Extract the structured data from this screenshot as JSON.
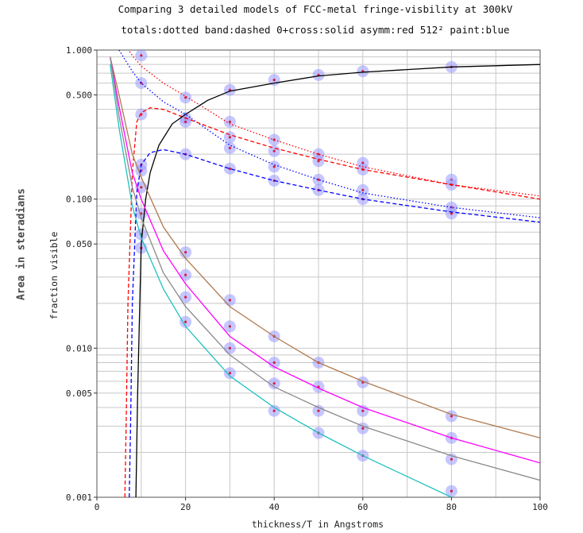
{
  "title_line1": "Comparing 3 detailed models of FCC-metal fringe-visbility at 300kV",
  "title_line2": "totals:dotted band:dashed 0+cross:solid asymm:red 512² paint:blue",
  "side_label": "Area in steradians",
  "colors": {
    "red": "#ff0000",
    "blue": "#0000ff",
    "black": "#000000",
    "brown": "#b07a50",
    "magenta": "#ff00ff",
    "gray": "#8a8a8a",
    "cyan": "#20c0c0",
    "marker": "#9999ff"
  },
  "chart_data": {
    "type": "line",
    "title": "Comparing 3 detailed models of FCC-metal fringe-visbility at 300kV",
    "subtitle": "totals:dotted band:dashed 0+cross:solid asymm:red 512² paint:blue",
    "xlabel": "thickness/T in Angstroms",
    "ylabel": "fraction visible",
    "xlim": [
      0,
      100
    ],
    "ylim": [
      0.001,
      1.0
    ],
    "y_scale": "log",
    "grid": true,
    "x_ticks": [
      0,
      20,
      40,
      60,
      80,
      100
    ],
    "y_tick_labels": [
      {
        "value": 1.0,
        "label": "1.000"
      },
      {
        "value": 0.5,
        "label": "0.500"
      },
      {
        "value": 0.1,
        "label": "0.100"
      },
      {
        "value": 0.05,
        "label": "0.050"
      },
      {
        "value": 0.01,
        "label": "0.010"
      },
      {
        "value": 0.005,
        "label": "0.005"
      },
      {
        "value": 0.001,
        "label": "0.001"
      }
    ],
    "series": [
      {
        "style": "dotted",
        "color": "red",
        "x": [
          5,
          8,
          10,
          15,
          20,
          30,
          40,
          50,
          60,
          80,
          100
        ],
        "y": [
          1.25,
          0.92,
          0.78,
          0.6,
          0.49,
          0.32,
          0.25,
          0.2,
          0.165,
          0.125,
          0.105
        ]
      },
      {
        "style": "dotted",
        "color": "blue",
        "x": [
          5,
          8,
          10,
          15,
          20,
          30,
          40,
          50,
          60,
          80,
          100
        ],
        "y": [
          1.0,
          0.72,
          0.6,
          0.45,
          0.37,
          0.23,
          0.17,
          0.135,
          0.11,
          0.088,
          0.075
        ]
      },
      {
        "style": "dashed",
        "color": "red",
        "x": [
          6.3,
          6.6,
          7,
          8,
          9,
          10,
          12,
          15,
          20,
          30,
          40,
          50,
          60,
          80,
          100
        ],
        "y": [
          0.001,
          0.003,
          0.02,
          0.15,
          0.33,
          0.38,
          0.41,
          0.4,
          0.35,
          0.27,
          0.22,
          0.185,
          0.158,
          0.125,
          0.1
        ]
      },
      {
        "style": "dashed",
        "color": "blue",
        "x": [
          7.3,
          7.6,
          8,
          9,
          10,
          12,
          15,
          20,
          30,
          40,
          50,
          60,
          80,
          100
        ],
        "y": [
          0.001,
          0.003,
          0.02,
          0.11,
          0.17,
          0.205,
          0.215,
          0.2,
          0.16,
          0.133,
          0.115,
          0.1,
          0.082,
          0.07
        ]
      },
      {
        "style": "solid",
        "color": "black",
        "x": [
          8.8,
          9.2,
          10,
          11,
          12,
          14,
          17,
          20,
          25,
          30,
          40,
          50,
          60,
          80,
          100
        ],
        "y": [
          0.001,
          0.005,
          0.05,
          0.1,
          0.15,
          0.23,
          0.32,
          0.37,
          0.46,
          0.53,
          0.6,
          0.67,
          0.71,
          0.77,
          0.8
        ]
      },
      {
        "style": "solid",
        "color": "brown",
        "x": [
          3,
          5,
          8,
          10,
          15,
          20,
          30,
          40,
          50,
          60,
          80,
          100
        ],
        "y": [
          0.9,
          0.5,
          0.2,
          0.14,
          0.065,
          0.04,
          0.019,
          0.012,
          0.008,
          0.006,
          0.0036,
          0.0025
        ]
      },
      {
        "style": "solid",
        "color": "magenta",
        "x": [
          3,
          5,
          8,
          10,
          15,
          20,
          30,
          40,
          50,
          60,
          80,
          100
        ],
        "y": [
          0.9,
          0.42,
          0.15,
          0.1,
          0.045,
          0.027,
          0.012,
          0.0075,
          0.0054,
          0.004,
          0.0025,
          0.0017
        ]
      },
      {
        "style": "solid",
        "color": "gray",
        "x": [
          3,
          5,
          8,
          10,
          15,
          20,
          30,
          40,
          50,
          60,
          80,
          100
        ],
        "y": [
          0.9,
          0.36,
          0.12,
          0.075,
          0.032,
          0.019,
          0.009,
          0.0055,
          0.004,
          0.003,
          0.0019,
          0.0013
        ]
      },
      {
        "style": "solid",
        "color": "cyan",
        "x": [
          3,
          5,
          8,
          10,
          15,
          20,
          30,
          40,
          50,
          60,
          80
        ],
        "y": [
          0.8,
          0.3,
          0.09,
          0.055,
          0.025,
          0.014,
          0.0065,
          0.004,
          0.0027,
          0.0019,
          0.001
        ]
      }
    ],
    "markers": {
      "color": "blue",
      "points": [
        {
          "x": 10,
          "y": 0.92
        },
        {
          "x": 10,
          "y": 0.6
        },
        {
          "x": 10,
          "y": 0.37
        },
        {
          "x": 10,
          "y": 0.17
        },
        {
          "x": 10,
          "y": 0.155
        },
        {
          "x": 10,
          "y": 0.12
        },
        {
          "x": 10,
          "y": 0.08
        },
        {
          "x": 10,
          "y": 0.058
        },
        {
          "x": 10,
          "y": 0.047
        },
        {
          "x": 20,
          "y": 0.48
        },
        {
          "x": 20,
          "y": 0.35
        },
        {
          "x": 20,
          "y": 0.33
        },
        {
          "x": 20,
          "y": 0.2
        },
        {
          "x": 20,
          "y": 0.044
        },
        {
          "x": 20,
          "y": 0.031
        },
        {
          "x": 20,
          "y": 0.022
        },
        {
          "x": 20,
          "y": 0.015
        },
        {
          "x": 30,
          "y": 0.54
        },
        {
          "x": 30,
          "y": 0.33
        },
        {
          "x": 30,
          "y": 0.26
        },
        {
          "x": 30,
          "y": 0.22
        },
        {
          "x": 30,
          "y": 0.16
        },
        {
          "x": 30,
          "y": 0.021
        },
        {
          "x": 30,
          "y": 0.014
        },
        {
          "x": 30,
          "y": 0.01
        },
        {
          "x": 30,
          "y": 0.0068
        },
        {
          "x": 40,
          "y": 0.63
        },
        {
          "x": 40,
          "y": 0.25
        },
        {
          "x": 40,
          "y": 0.21
        },
        {
          "x": 40,
          "y": 0.165
        },
        {
          "x": 40,
          "y": 0.133
        },
        {
          "x": 40,
          "y": 0.012
        },
        {
          "x": 40,
          "y": 0.008
        },
        {
          "x": 40,
          "y": 0.0058
        },
        {
          "x": 40,
          "y": 0.0038
        },
        {
          "x": 50,
          "y": 0.68
        },
        {
          "x": 50,
          "y": 0.2
        },
        {
          "x": 50,
          "y": 0.18
        },
        {
          "x": 50,
          "y": 0.135
        },
        {
          "x": 50,
          "y": 0.115
        },
        {
          "x": 50,
          "y": 0.008
        },
        {
          "x": 50,
          "y": 0.0055
        },
        {
          "x": 50,
          "y": 0.0038
        },
        {
          "x": 50,
          "y": 0.0027
        },
        {
          "x": 60,
          "y": 0.72
        },
        {
          "x": 60,
          "y": 0.175
        },
        {
          "x": 60,
          "y": 0.158
        },
        {
          "x": 60,
          "y": 0.115
        },
        {
          "x": 60,
          "y": 0.1
        },
        {
          "x": 60,
          "y": 0.0059
        },
        {
          "x": 60,
          "y": 0.0038
        },
        {
          "x": 60,
          "y": 0.0029
        },
        {
          "x": 60,
          "y": 0.0019
        },
        {
          "x": 80,
          "y": 0.77
        },
        {
          "x": 80,
          "y": 0.135
        },
        {
          "x": 80,
          "y": 0.125
        },
        {
          "x": 80,
          "y": 0.088
        },
        {
          "x": 80,
          "y": 0.08
        },
        {
          "x": 80,
          "y": 0.0035
        },
        {
          "x": 80,
          "y": 0.0025
        },
        {
          "x": 80,
          "y": 0.0018
        },
        {
          "x": 80,
          "y": 0.0011
        }
      ]
    }
  }
}
